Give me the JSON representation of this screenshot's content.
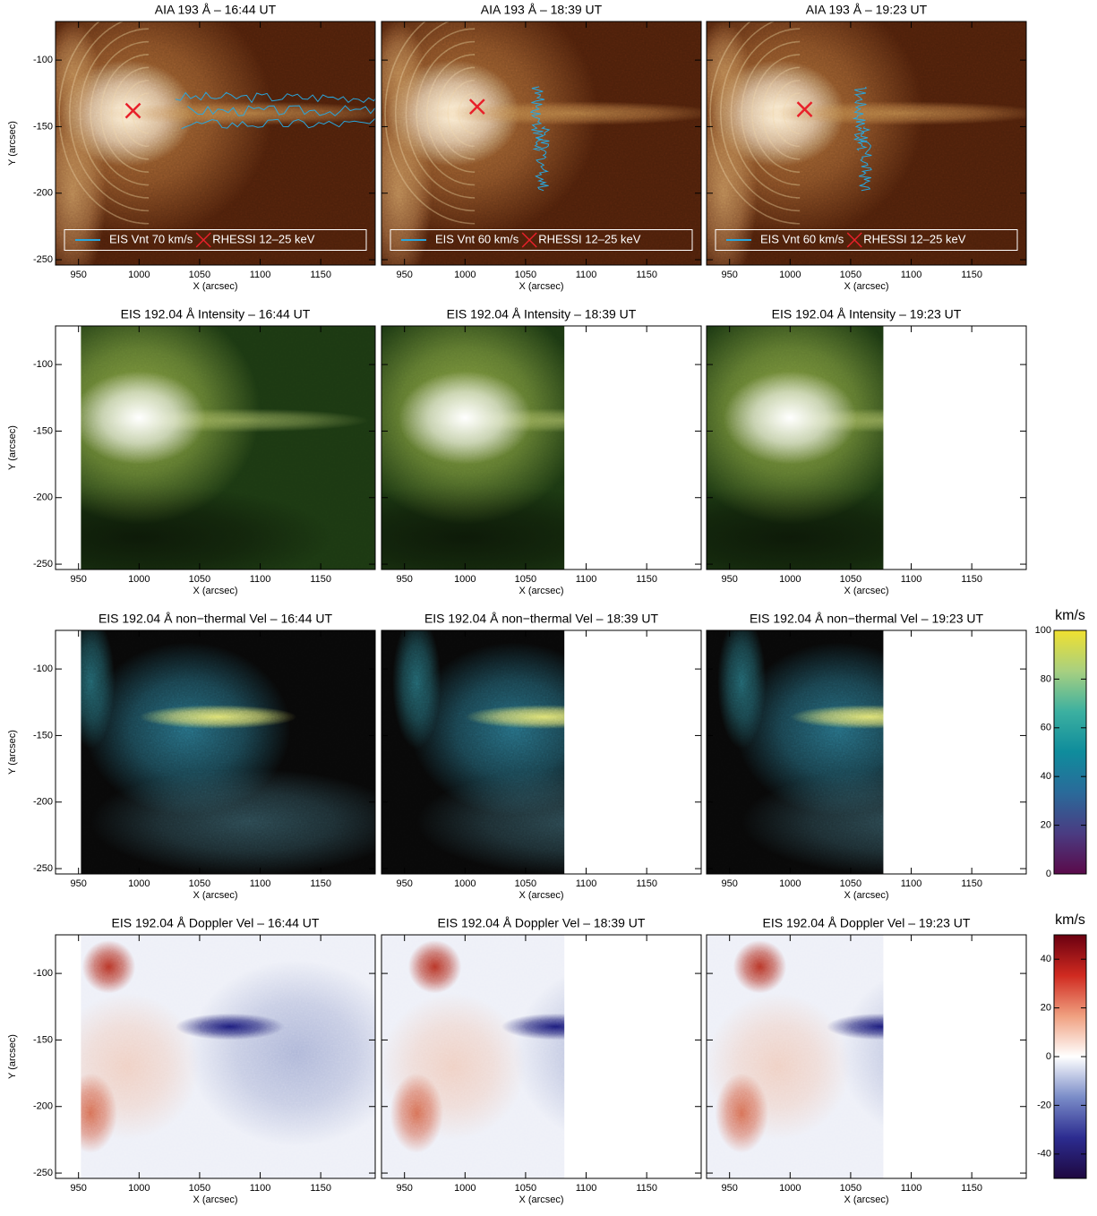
{
  "chart_data": [
    {
      "type": "image",
      "colormap": "aia193",
      "title": "AIA 193 Å – 16:44 UT",
      "xlabel": "X (arcsec)",
      "ylabel": "Y (arcsec)",
      "xlim": [
        931,
        1195
      ],
      "ylim": [
        -254,
        -71
      ],
      "xticks": [
        950,
        1000,
        1050,
        1100,
        1150
      ],
      "yticks": [
        -250,
        -200,
        -150,
        -100
      ],
      "series": [
        {
          "name": "EIS Vnt 70 km/s",
          "type": "contour",
          "color": "#2aa6dc"
        },
        {
          "name": "RHESSI 12–25 keV",
          "type": "scatter",
          "color": "#e8202a",
          "x": [
            995
          ],
          "y": [
            -138
          ]
        }
      ]
    },
    {
      "type": "image",
      "colormap": "aia193",
      "title": "AIA 193 Å – 18:39 UT",
      "xlabel": "X (arcsec)",
      "xlim": [
        931,
        1195
      ],
      "ylim": [
        -254,
        -71
      ],
      "xticks": [
        950,
        1000,
        1050,
        1100,
        1150
      ],
      "yticks": [
        -250,
        -200,
        -150,
        -100
      ],
      "series": [
        {
          "name": "EIS Vnt 60 km/s",
          "type": "contour",
          "color": "#2aa6dc"
        },
        {
          "name": "RHESSI 12–25 keV",
          "type": "scatter",
          "color": "#e8202a",
          "x": [
            1010
          ],
          "y": [
            -135
          ]
        }
      ]
    },
    {
      "type": "image",
      "colormap": "aia193",
      "title": "AIA 193 Å – 19:23 UT",
      "xlabel": "X (arcsec)",
      "xlim": [
        931,
        1195
      ],
      "ylim": [
        -254,
        -71
      ],
      "xticks": [
        950,
        1000,
        1050,
        1100,
        1150
      ],
      "yticks": [
        -250,
        -200,
        -150,
        -100
      ],
      "series": [
        {
          "name": "EIS Vnt 60 km/s",
          "type": "contour",
          "color": "#2aa6dc"
        },
        {
          "name": "RHESSI 12–25 keV",
          "type": "scatter",
          "color": "#e8202a",
          "x": [
            1012
          ],
          "y": [
            -137
          ]
        }
      ]
    },
    {
      "type": "image",
      "colormap": "green",
      "title": "EIS 192.04 Å Intensity – 16:44 UT",
      "xlabel": "X (arcsec)",
      "ylabel": "Y (arcsec)",
      "xlim": [
        931,
        1195
      ],
      "ylim": [
        -254,
        -71
      ],
      "xticks": [
        950,
        1000,
        1050,
        1100,
        1150
      ],
      "yticks": [
        -250,
        -200,
        -150,
        -100
      ],
      "image_xlim": [
        952,
        1195
      ]
    },
    {
      "type": "image",
      "colormap": "green",
      "title": "EIS 192.04 Å Intensity – 18:39 UT",
      "xlabel": "X (arcsec)",
      "xlim": [
        931,
        1195
      ],
      "ylim": [
        -254,
        -71
      ],
      "xticks": [
        950,
        1000,
        1050,
        1100,
        1150
      ],
      "yticks": [
        -250,
        -200,
        -150,
        -100
      ],
      "image_xlim": [
        931,
        1082
      ]
    },
    {
      "type": "image",
      "colormap": "green",
      "title": "EIS 192.04 Å Intensity – 19:23 UT",
      "xlabel": "X (arcsec)",
      "xlim": [
        931,
        1195
      ],
      "ylim": [
        -254,
        -71
      ],
      "xticks": [
        950,
        1000,
        1050,
        1100,
        1150
      ],
      "yticks": [
        -250,
        -200,
        -150,
        -100
      ],
      "image_xlim": [
        931,
        1077
      ]
    },
    {
      "type": "image",
      "colormap": "vnt",
      "title": "EIS 192.04 Å non−thermal Vel – 16:44 UT",
      "xlabel": "X (arcsec)",
      "ylabel": "Y (arcsec)",
      "xlim": [
        931,
        1195
      ],
      "ylim": [
        -254,
        -71
      ],
      "xticks": [
        950,
        1000,
        1050,
        1100,
        1150
      ],
      "yticks": [
        -250,
        -200,
        -150,
        -100
      ],
      "image_xlim": [
        952,
        1195
      ]
    },
    {
      "type": "image",
      "colormap": "vnt",
      "title": "EIS 192.04 Å non−thermal Vel – 18:39 UT",
      "xlabel": "X (arcsec)",
      "xlim": [
        931,
        1195
      ],
      "ylim": [
        -254,
        -71
      ],
      "xticks": [
        950,
        1000,
        1050,
        1100,
        1150
      ],
      "yticks": [
        -250,
        -200,
        -150,
        -100
      ],
      "image_xlim": [
        931,
        1082
      ]
    },
    {
      "type": "image",
      "colormap": "vnt",
      "title": "EIS 192.04 Å non−thermal Vel – 19:23 UT",
      "xlabel": "X (arcsec)",
      "xlim": [
        931,
        1195
      ],
      "ylim": [
        -254,
        -71
      ],
      "xticks": [
        950,
        1000,
        1050,
        1100,
        1150
      ],
      "yticks": [
        -250,
        -200,
        -150,
        -100
      ],
      "image_xlim": [
        931,
        1077
      ]
    },
    {
      "type": "image",
      "colormap": "doppler",
      "title": "EIS 192.04 Å Doppler Vel – 16:44 UT",
      "xlabel": "X (arcsec)",
      "ylabel": "Y (arcsec)",
      "xlim": [
        931,
        1195
      ],
      "ylim": [
        -254,
        -71
      ],
      "xticks": [
        950,
        1000,
        1050,
        1100,
        1150
      ],
      "yticks": [
        -250,
        -200,
        -150,
        -100
      ],
      "image_xlim": [
        952,
        1195
      ]
    },
    {
      "type": "image",
      "colormap": "doppler",
      "title": "EIS 192.04 Å Doppler Vel – 18:39 UT",
      "xlabel": "X (arcsec)",
      "xlim": [
        931,
        1195
      ],
      "ylim": [
        -254,
        -71
      ],
      "xticks": [
        950,
        1000,
        1050,
        1100,
        1150
      ],
      "yticks": [
        -250,
        -200,
        -150,
        -100
      ],
      "image_xlim": [
        931,
        1082
      ]
    },
    {
      "type": "image",
      "colormap": "doppler",
      "title": "EIS 192.04 Å Doppler Vel – 19:23 UT",
      "xlabel": "X (arcsec)",
      "xlim": [
        931,
        1195
      ],
      "ylim": [
        -254,
        -71
      ],
      "xticks": [
        950,
        1000,
        1050,
        1100,
        1150
      ],
      "yticks": [
        -250,
        -200,
        -150,
        -100
      ],
      "image_xlim": [
        931,
        1077
      ]
    },
    {
      "type": "colorbar",
      "colormap": "vnt",
      "label": "km/s",
      "ylim": [
        0,
        100
      ],
      "yticks": [
        0,
        20,
        40,
        60,
        80,
        100
      ],
      "colors": [
        "#5a0a4a",
        "#4a3c82",
        "#2a6a9a",
        "#0f8c9c",
        "#3cb0a0",
        "#a8d080",
        "#f0e030"
      ]
    },
    {
      "type": "colorbar",
      "colormap": "doppler",
      "label": "km/s",
      "ylim": [
        -50,
        50
      ],
      "yticks": [
        -40,
        -20,
        0,
        20,
        40
      ],
      "colors": [
        "#1e0840",
        "#2c2c90",
        "#7a8cc8",
        "#ffffff",
        "#f0a080",
        "#d02a20",
        "#6a0010"
      ]
    }
  ]
}
